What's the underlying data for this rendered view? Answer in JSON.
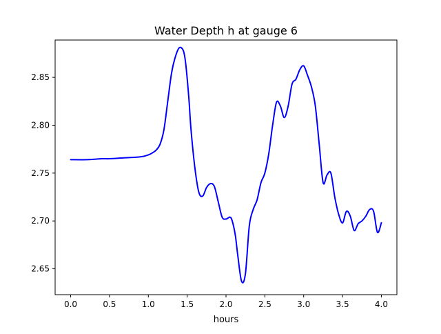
{
  "chart_data": {
    "type": "line",
    "title": "Water Depth h at gauge 6",
    "xlabel": "hours",
    "ylabel": "",
    "xlim": [
      -0.2,
      4.2
    ],
    "ylim": [
      2.623,
      2.889
    ],
    "xticks": [
      0.0,
      0.5,
      1.0,
      1.5,
      2.0,
      2.5,
      3.0,
      3.5,
      4.0
    ],
    "xtick_labels": [
      "0.0",
      "0.5",
      "1.0",
      "1.5",
      "2.0",
      "2.5",
      "3.0",
      "3.5",
      "4.0"
    ],
    "yticks": [
      2.65,
      2.7,
      2.75,
      2.8,
      2.85
    ],
    "ytick_labels": [
      "2.65",
      "2.70",
      "2.75",
      "2.80",
      "2.85"
    ],
    "grid": false,
    "line_color": "#0000ff",
    "series": [
      {
        "x": [
          0.0,
          0.2,
          0.4,
          0.5,
          0.7,
          0.9,
          1.0,
          1.05,
          1.1,
          1.15,
          1.2,
          1.25,
          1.3,
          1.35,
          1.4,
          1.45,
          1.48,
          1.52,
          1.55,
          1.6,
          1.65,
          1.7,
          1.75,
          1.8,
          1.85,
          1.9,
          1.95,
          2.0,
          2.05,
          2.08,
          2.12,
          2.15,
          2.2,
          2.25,
          2.3,
          2.35,
          2.4,
          2.45,
          2.5,
          2.55,
          2.6,
          2.65,
          2.7,
          2.75,
          2.8,
          2.85,
          2.9,
          2.95,
          3.0,
          3.05,
          3.1,
          3.15,
          3.2,
          3.25,
          3.3,
          3.35,
          3.4,
          3.45,
          3.5,
          3.55,
          3.6,
          3.65,
          3.7,
          3.75,
          3.8,
          3.85,
          3.9,
          3.95,
          4.0
        ],
        "y": [
          2.764,
          2.764,
          2.765,
          2.765,
          2.766,
          2.767,
          2.769,
          2.771,
          2.774,
          2.78,
          2.795,
          2.825,
          2.855,
          2.872,
          2.881,
          2.878,
          2.865,
          2.83,
          2.795,
          2.755,
          2.73,
          2.726,
          2.735,
          2.739,
          2.736,
          2.72,
          2.704,
          2.702,
          2.704,
          2.7,
          2.685,
          2.665,
          2.637,
          2.645,
          2.695,
          2.712,
          2.722,
          2.74,
          2.75,
          2.77,
          2.8,
          2.824,
          2.82,
          2.808,
          2.82,
          2.843,
          2.848,
          2.858,
          2.862,
          2.852,
          2.84,
          2.82,
          2.78,
          2.74,
          2.748,
          2.75,
          2.725,
          2.707,
          2.698,
          2.71,
          2.705,
          2.69,
          2.697,
          2.7,
          2.705,
          2.712,
          2.71,
          2.688,
          2.698
        ]
      }
    ]
  }
}
